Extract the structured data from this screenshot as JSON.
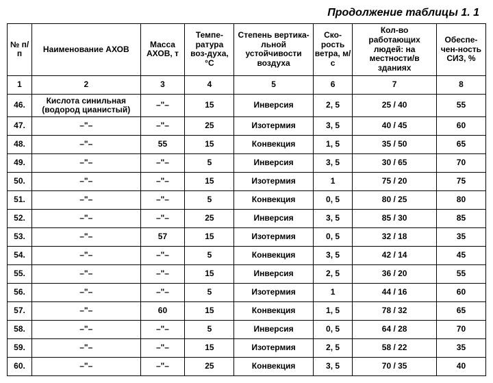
{
  "title": "Продолжение таблицы 1. 1",
  "headers": {
    "h1": "№ п/п",
    "h2": "Наименование АХОВ",
    "h3": "Масса АХОВ, т",
    "h4": "Темпе-ратура воз-духа, °С",
    "h5": "Степень вертика-льной устойчивости воздуха",
    "h6": "Ско-рость ветра, м/с",
    "h7": "Кол-во работающих людей: на местности/в зданиях",
    "h8": "Обеспе-чен-ность СИЗ, %"
  },
  "numrow": {
    "c1": "1",
    "c2": "2",
    "c3": "3",
    "c4": "4",
    "c5": "5",
    "c6": "6",
    "c7": "7",
    "c8": "8"
  },
  "rows": [
    {
      "c1": "46.",
      "c2": "Кислота синильная (водород цианистый)",
      "c3": "–\"–",
      "c4": "15",
      "c5": "Инверсия",
      "c6": "2, 5",
      "c7": "25 / 40",
      "c8": "55"
    },
    {
      "c1": "47.",
      "c2": "–\"–",
      "c3": "–\"–",
      "c4": "25",
      "c5": "Изотермия",
      "c6": "3, 5",
      "c7": "40 / 45",
      "c8": "60"
    },
    {
      "c1": "48.",
      "c2": "–\"–",
      "c3": "55",
      "c4": "15",
      "c5": "Конвекция",
      "c6": "1, 5",
      "c7": "35 / 50",
      "c8": "65"
    },
    {
      "c1": "49.",
      "c2": "–\"–",
      "c3": "–\"–",
      "c4": "5",
      "c5": "Инверсия",
      "c6": "3, 5",
      "c7": "30 / 65",
      "c8": "70"
    },
    {
      "c1": "50.",
      "c2": "–\"–",
      "c3": "–\"–",
      "c4": "15",
      "c5": "Изотермия",
      "c6": "1",
      "c7": "75 / 20",
      "c8": "75"
    },
    {
      "c1": "51.",
      "c2": "–\"–",
      "c3": "–\"–",
      "c4": "5",
      "c5": "Конвекция",
      "c6": "0, 5",
      "c7": "80 / 25",
      "c8": "80"
    },
    {
      "c1": "52.",
      "c2": "–\"–",
      "c3": "–\"–",
      "c4": "25",
      "c5": "Инверсия",
      "c6": "3, 5",
      "c7": "85 / 30",
      "c8": "85"
    },
    {
      "c1": "53.",
      "c2": "–\"–",
      "c3": "57",
      "c4": "15",
      "c5": "Изотермия",
      "c6": "0, 5",
      "c7": "32 / 18",
      "c8": "35"
    },
    {
      "c1": "54.",
      "c2": "–\"–",
      "c3": "–\"–",
      "c4": "5",
      "c5": "Конвекция",
      "c6": "3, 5",
      "c7": "42 / 14",
      "c8": "45"
    },
    {
      "c1": "55.",
      "c2": "–\"–",
      "c3": "–\"–",
      "c4": "15",
      "c5": "Инверсия",
      "c6": "2, 5",
      "c7": "36 / 20",
      "c8": "55"
    },
    {
      "c1": "56.",
      "c2": "–\"–",
      "c3": "–\"–",
      "c4": "5",
      "c5": "Изотермия",
      "c6": "1",
      "c7": "44 / 16",
      "c8": "60"
    },
    {
      "c1": "57.",
      "c2": "–\"–",
      "c3": "60",
      "c4": "15",
      "c5": "Конвекция",
      "c6": "1, 5",
      "c7": "78 / 32",
      "c8": "65"
    },
    {
      "c1": "58.",
      "c2": "–\"–",
      "c3": "–\"–",
      "c4": "5",
      "c5": "Инверсия",
      "c6": "0, 5",
      "c7": "64 / 28",
      "c8": "70"
    },
    {
      "c1": "59.",
      "c2": "–\"–",
      "c3": "–\"–",
      "c4": "15",
      "c5": "Изотермия",
      "c6": "2, 5",
      "c7": "58 / 22",
      "c8": "35"
    },
    {
      "c1": "60.",
      "c2": "–\"–",
      "c3": "–\"–",
      "c4": "25",
      "c5": "Конвекция",
      "c6": "3, 5",
      "c7": "70 / 35",
      "c8": "40"
    }
  ]
}
